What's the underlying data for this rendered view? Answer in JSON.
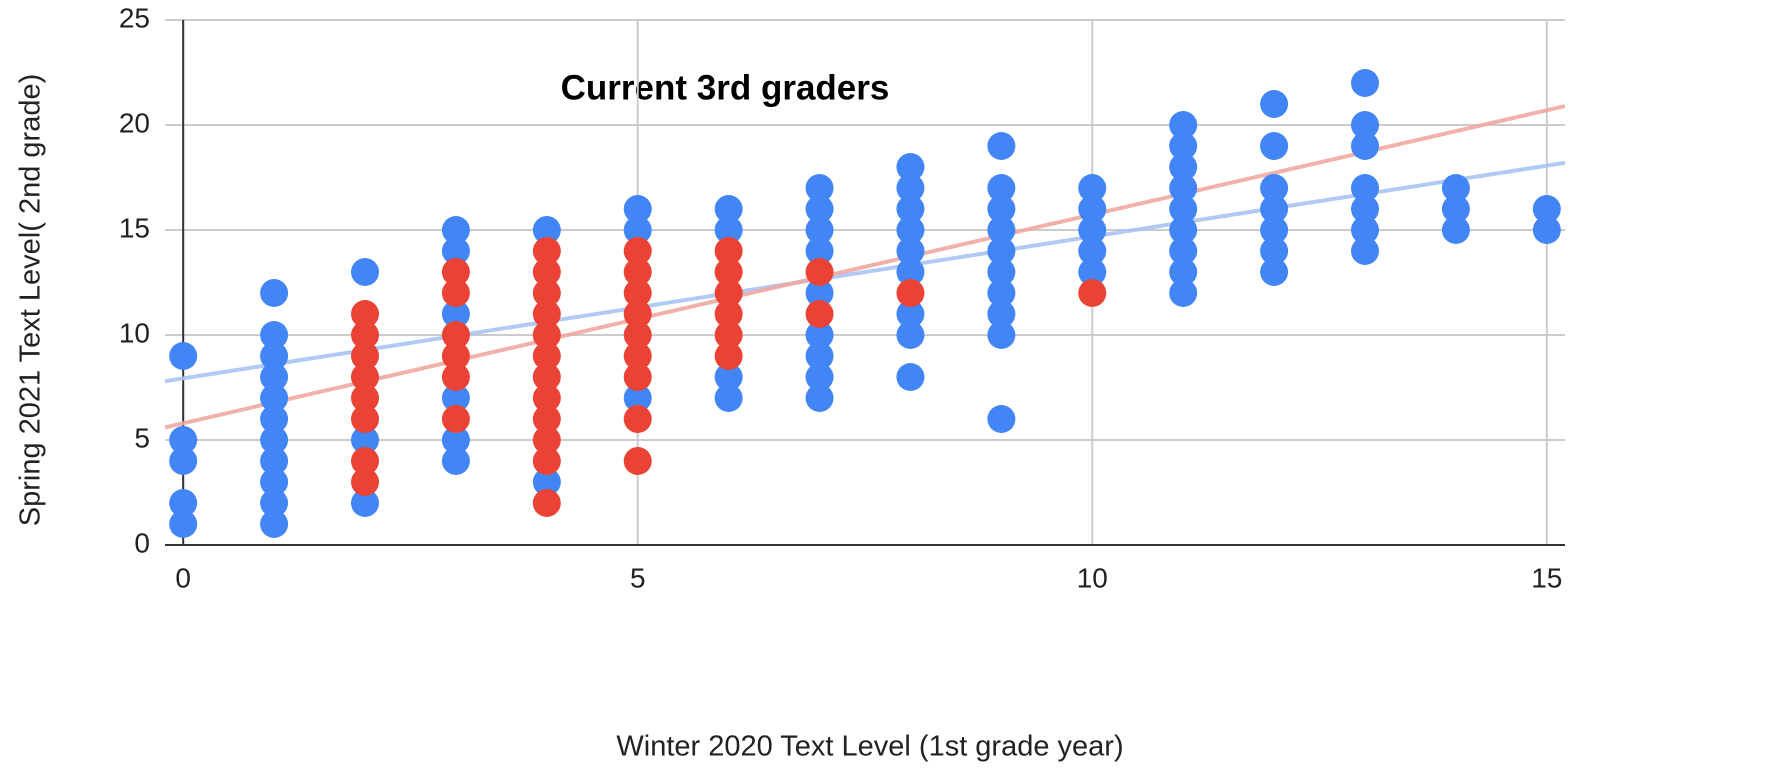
{
  "chart_data": {
    "type": "scatter",
    "title": "Current 3rd graders",
    "x_label": "Winter 2020 Text Level (1st grade year)",
    "y_label": "Spring 2021 Text Level( 2nd grade)",
    "xlim": [
      -0.2,
      15.2
    ],
    "ylim": [
      0,
      25
    ],
    "xticks": [
      0,
      5,
      10,
      15
    ],
    "yticks": [
      0,
      5,
      10,
      15,
      20,
      25
    ],
    "grid": true,
    "series": [
      {
        "color": "#4285f4",
        "x": [
          0,
          0,
          0,
          0,
          0,
          1,
          1,
          1,
          1,
          1,
          1,
          1,
          1,
          1,
          1,
          1,
          2,
          2,
          2,
          3,
          3,
          3,
          3,
          3,
          3,
          4,
          4,
          5,
          5,
          5,
          6,
          6,
          6,
          6,
          7,
          7,
          7,
          7,
          7,
          7,
          7,
          7,
          7,
          8,
          8,
          8,
          8,
          8,
          8,
          8,
          8,
          8,
          9,
          9,
          9,
          9,
          9,
          9,
          9,
          9,
          9,
          9,
          10,
          10,
          10,
          10,
          10,
          11,
          11,
          11,
          11,
          11,
          11,
          11,
          11,
          11,
          12,
          12,
          12,
          12,
          12,
          12,
          12,
          13,
          13,
          13,
          13,
          13,
          13,
          13,
          14,
          14,
          14,
          15,
          15
        ],
        "values": [
          9,
          5,
          4,
          2,
          1,
          12,
          10,
          9,
          8,
          7,
          6,
          5,
          4,
          3,
          2,
          1,
          13,
          5,
          2,
          15,
          14,
          11,
          7,
          5,
          4,
          15,
          3,
          16,
          15,
          7,
          16,
          15,
          8,
          7,
          17,
          16,
          15,
          14,
          12,
          10,
          9,
          8,
          7,
          18,
          17,
          16,
          15,
          14,
          13,
          11,
          10,
          8,
          19,
          17,
          16,
          15,
          14,
          13,
          12,
          11,
          10,
          6,
          17,
          16,
          15,
          14,
          13,
          20,
          19,
          18,
          17,
          16,
          15,
          14,
          13,
          12,
          21,
          19,
          17,
          16,
          15,
          14,
          13,
          22,
          20,
          19,
          17,
          16,
          15,
          14,
          17,
          16,
          15,
          16,
          15
        ]
      },
      {
        "color": "#ea4335",
        "x": [
          2,
          2,
          2,
          2,
          2,
          2,
          2,
          2,
          3,
          3,
          3,
          3,
          3,
          3,
          4,
          4,
          4,
          4,
          4,
          4,
          4,
          4,
          4,
          4,
          4,
          4,
          5,
          5,
          5,
          5,
          5,
          5,
          5,
          5,
          5,
          6,
          6,
          6,
          6,
          6,
          6,
          7,
          7,
          8,
          10
        ],
        "values": [
          11,
          10,
          9,
          8,
          7,
          6,
          4,
          3,
          13,
          12,
          10,
          9,
          8,
          6,
          14,
          13,
          12,
          11,
          10,
          9,
          8,
          7,
          6,
          5,
          4,
          2,
          14,
          13,
          12,
          11,
          10,
          9,
          8,
          6,
          4,
          14,
          13,
          12,
          11,
          10,
          9,
          13,
          11,
          12,
          12
        ]
      }
    ],
    "trendlines": [
      {
        "color": "#a8c4f4",
        "x": [
          -0.2,
          15.2
        ],
        "values": [
          7.8,
          18.2
        ]
      },
      {
        "color": "#f0a9a2",
        "x": [
          -0.2,
          15.2
        ],
        "values": [
          5.6,
          20.9
        ]
      }
    ]
  }
}
